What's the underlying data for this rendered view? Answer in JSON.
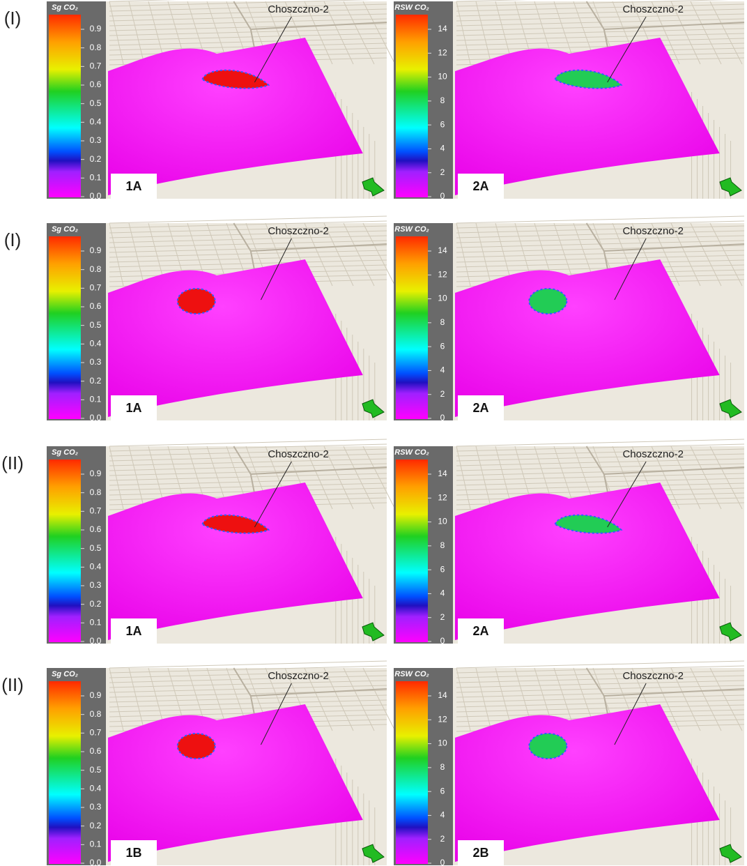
{
  "rows": [
    {
      "label": "(I)",
      "panels": [
        {
          "colorbar_title": "Sg CO₂",
          "ticks": [
            "0.9",
            "0.8",
            "0.7",
            "0.6",
            "0.5",
            "0.4",
            "0.3",
            "0.2",
            "0.1",
            "0.0"
          ],
          "well": "Choszczno-2",
          "tag": "1A"
        },
        {
          "colorbar_title": "RSW CO₂",
          "ticks": [
            "14",
            "12",
            "10",
            "8",
            "6",
            "4",
            "2",
            "0"
          ],
          "well": "Choszczno-2",
          "tag": "2A"
        }
      ]
    },
    {
      "label": "(I)",
      "panels": [
        {
          "colorbar_title": "Sg CO₂",
          "ticks": [
            "0.9",
            "0.8",
            "0.7",
            "0.6",
            "0.5",
            "0.4",
            "0.3",
            "0.2",
            "0.1",
            "0.0"
          ],
          "well": "Choszczno-2",
          "tag": "1A"
        },
        {
          "colorbar_title": "RSW CO₂",
          "ticks": [
            "14",
            "12",
            "10",
            "8",
            "6",
            "4",
            "2",
            "0"
          ],
          "well": "Choszczno-2",
          "tag": "2A"
        }
      ]
    },
    {
      "label": "(II)",
      "panels": [
        {
          "colorbar_title": "Sg CO₂",
          "ticks": [
            "0.9",
            "0.8",
            "0.7",
            "0.6",
            "0.5",
            "0.4",
            "0.3",
            "0.2",
            "0.1",
            "0.0"
          ],
          "well": "Choszczno-2",
          "tag": "1A"
        },
        {
          "colorbar_title": "RSW CO₂",
          "ticks": [
            "14",
            "12",
            "10",
            "8",
            "6",
            "4",
            "2",
            "0"
          ],
          "well": "Choszczno-2",
          "tag": "2A"
        }
      ]
    },
    {
      "label": "(II)",
      "panels": [
        {
          "colorbar_title": "Sg CO₂",
          "ticks": [
            "0.9",
            "0.8",
            "0.7",
            "0.6",
            "0.5",
            "0.4",
            "0.3",
            "0.2",
            "0.1",
            "0.0"
          ],
          "well": "Choszczno-2",
          "tag": "1B"
        },
        {
          "colorbar_title": "RSW CO₂",
          "ticks": [
            "14",
            "12",
            "10",
            "8",
            "6",
            "4",
            "2",
            "0"
          ],
          "well": "Choszczno-2",
          "tag": "2B"
        }
      ]
    }
  ]
}
